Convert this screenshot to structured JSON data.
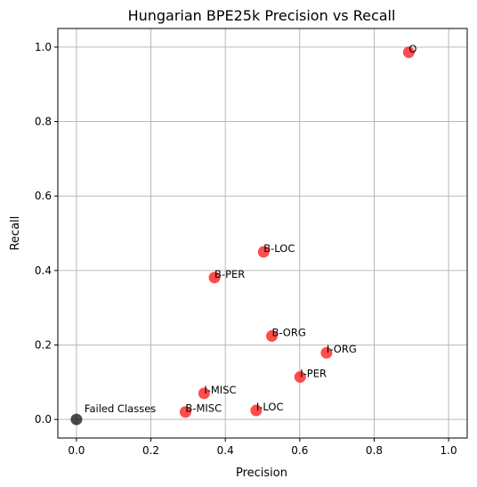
{
  "chart_data": {
    "type": "scatter",
    "title": "Hungarian BPE25k Precision vs Recall",
    "xlabel": "Precision",
    "ylabel": "Recall",
    "xlim": [
      -0.05,
      1.05
    ],
    "ylim": [
      -0.05,
      1.05
    ],
    "grid": true,
    "x_ticks": [
      "0.0",
      "0.2",
      "0.4",
      "0.6",
      "0.8",
      "1.0"
    ],
    "y_ticks": [
      "0.0",
      "0.2",
      "0.4",
      "0.6",
      "0.8",
      "1.0"
    ],
    "colors": {
      "class_point": "#ff0000",
      "failed_point": "#000000",
      "grid": "#b0b0b0"
    },
    "points": [
      {
        "label": "O",
        "x": 0.893,
        "y": 0.986
      },
      {
        "label": "B-LOC",
        "x": 0.503,
        "y": 0.45
      },
      {
        "label": "B-PER",
        "x": 0.371,
        "y": 0.381
      },
      {
        "label": "B-ORG",
        "x": 0.525,
        "y": 0.224
      },
      {
        "label": "I-ORG",
        "x": 0.672,
        "y": 0.179
      },
      {
        "label": "I-PER",
        "x": 0.601,
        "y": 0.114
      },
      {
        "label": "I-MISC",
        "x": 0.343,
        "y": 0.07
      },
      {
        "label": "I-LOC",
        "x": 0.483,
        "y": 0.024
      },
      {
        "label": "B-MISC",
        "x": 0.293,
        "y": 0.02
      }
    ],
    "failed": {
      "label": "Failed Classes",
      "x": 0.0,
      "y": 0.0
    }
  }
}
